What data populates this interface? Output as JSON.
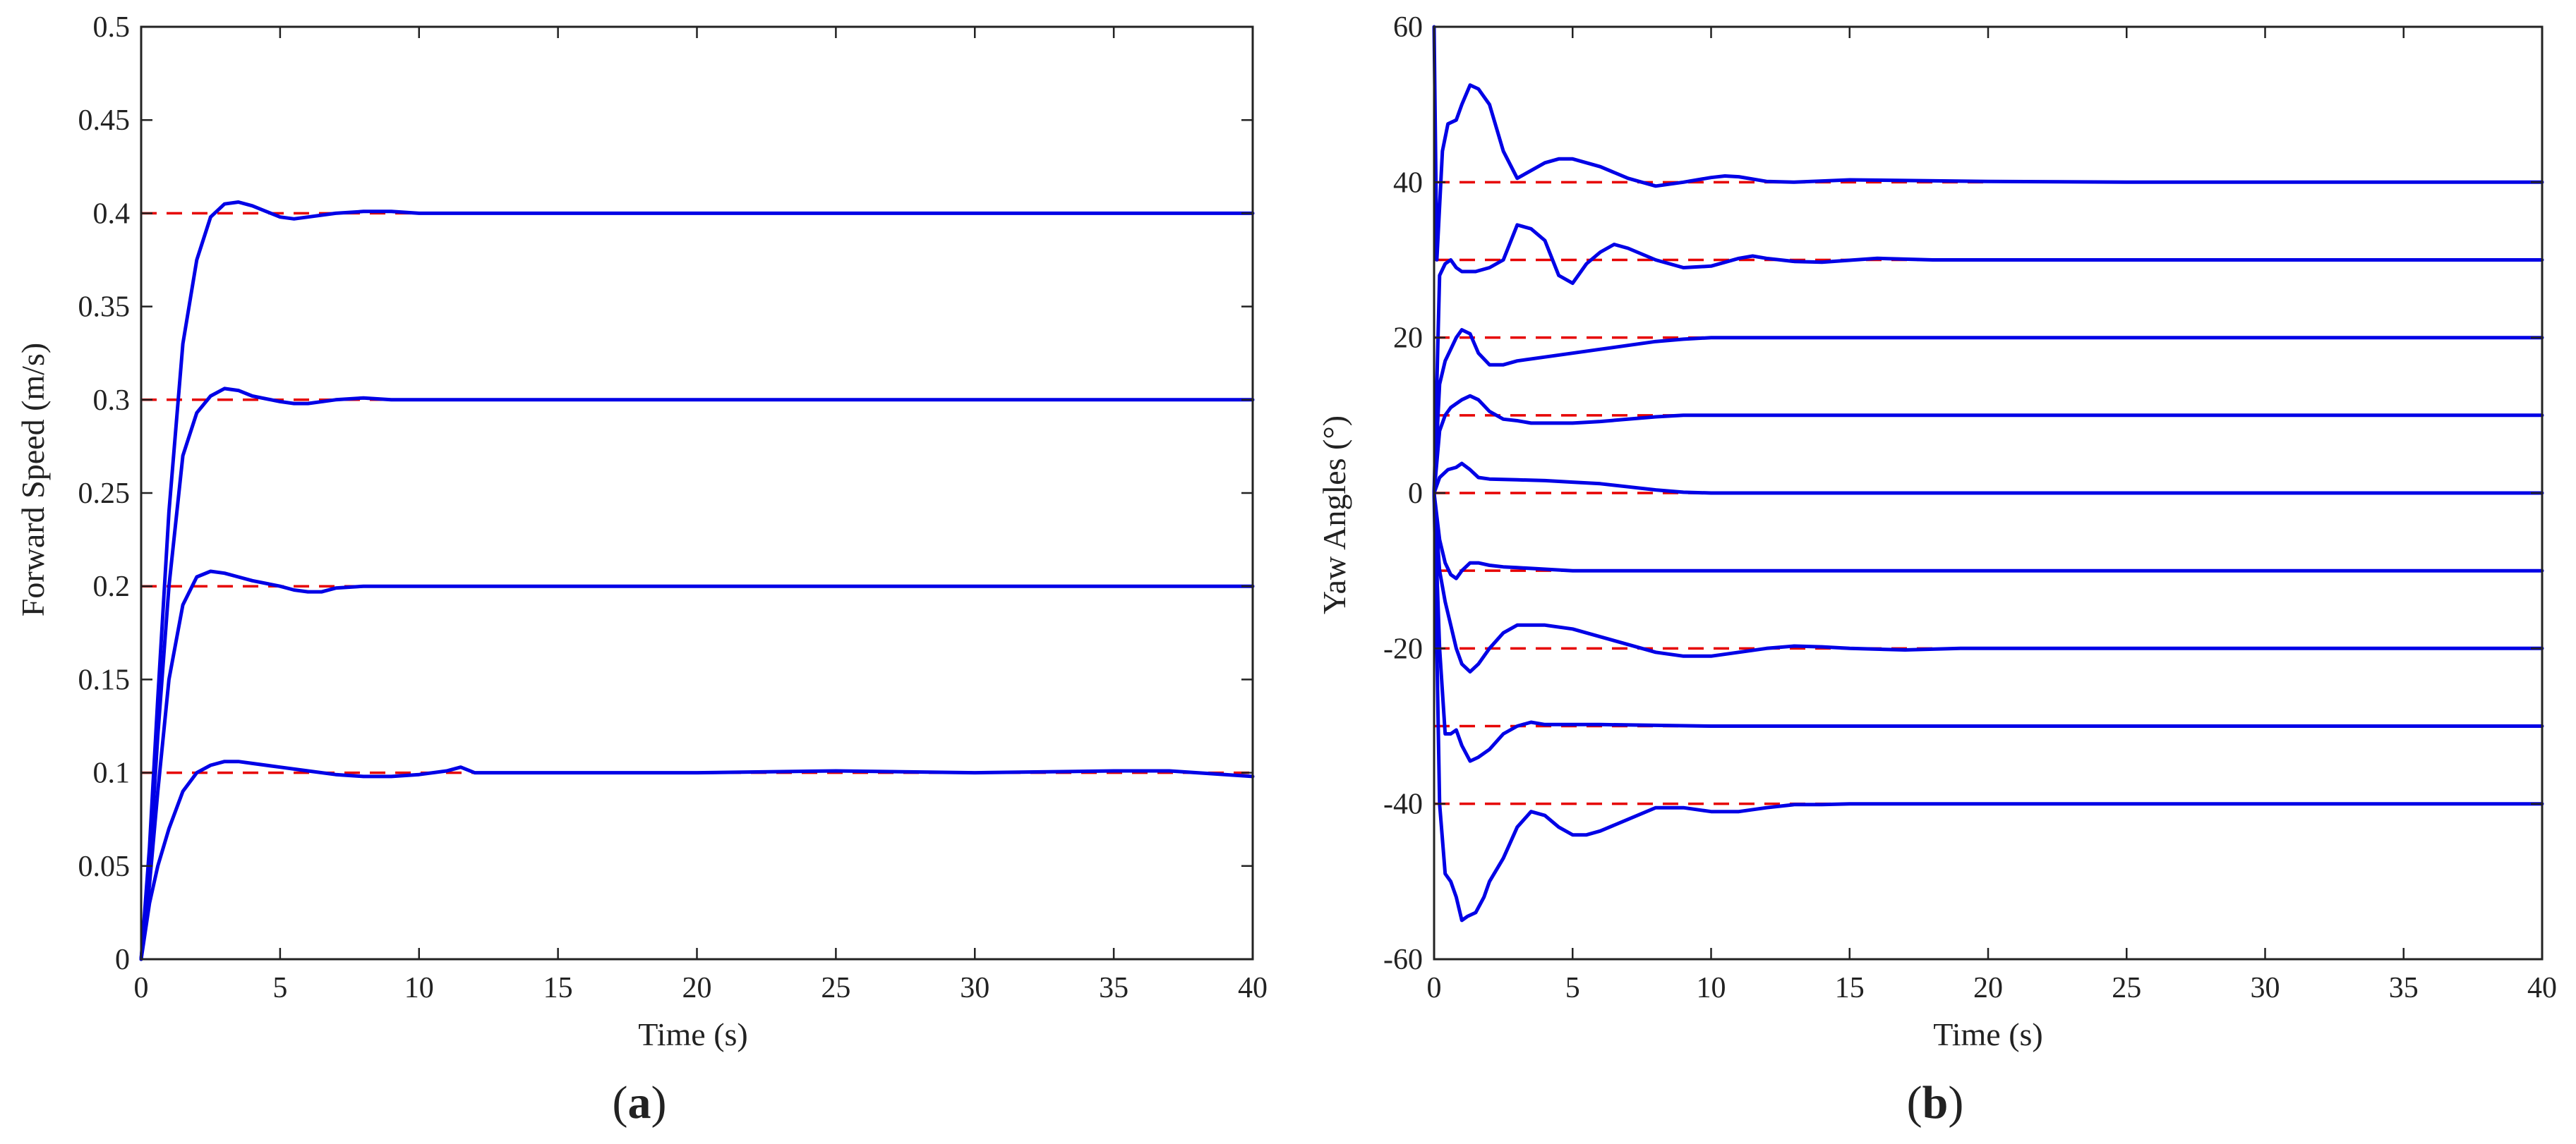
{
  "figure": {
    "panel_a_label": {
      "open": "(",
      "letter": "a",
      "close": ")"
    },
    "panel_b_label": {
      "open": "(",
      "letter": "b",
      "close": ")"
    }
  },
  "colors": {
    "response_line": "#0000e6",
    "reference_line": "#e60000",
    "axes": "#222222",
    "background": "#ffffff"
  },
  "chart_data": [
    {
      "type": "line",
      "id": "panel-a",
      "title": "",
      "xlabel": "Time (s)",
      "ylabel": "Forward Speed (m/s)",
      "xlim": [
        0,
        40
      ],
      "ylim": [
        0,
        0.5
      ],
      "xticks": [
        0,
        5,
        10,
        15,
        20,
        25,
        30,
        35,
        40
      ],
      "yticks": [
        0,
        0.05,
        0.1,
        0.15,
        0.2,
        0.25,
        0.3,
        0.35,
        0.4,
        0.45,
        0.5
      ],
      "ytick_labels": [
        "0",
        "0.05",
        "0.1",
        "0.15",
        "0.2",
        "0.25",
        "0.3",
        "0.35",
        "0.4",
        "0.45",
        "0.5"
      ],
      "grid": false,
      "references": [
        {
          "name": "reference 0.4",
          "y": 0.4,
          "x_end": 40
        },
        {
          "name": "reference 0.3",
          "y": 0.3,
          "x_end": 40
        },
        {
          "name": "reference 0.2",
          "y": 0.2,
          "x_end": 40
        },
        {
          "name": "reference 0.1",
          "y": 0.1,
          "x_end": 40
        }
      ],
      "series": [
        {
          "name": "speed 0.4",
          "x": [
            0,
            0.3,
            0.6,
            1.0,
            1.5,
            2.0,
            2.5,
            3.0,
            3.5,
            4.0,
            4.5,
            5.0,
            5.5,
            6.0,
            7.0,
            8.0,
            9.0,
            10.0,
            15.0,
            20.0,
            30.0,
            40.0
          ],
          "y": [
            0,
            0.06,
            0.14,
            0.24,
            0.33,
            0.375,
            0.398,
            0.405,
            0.406,
            0.404,
            0.401,
            0.398,
            0.397,
            0.398,
            0.4,
            0.401,
            0.401,
            0.4,
            0.4,
            0.4,
            0.4,
            0.4
          ]
        },
        {
          "name": "speed 0.3",
          "x": [
            0,
            0.3,
            0.6,
            1.0,
            1.5,
            2.0,
            2.5,
            3.0,
            3.5,
            4.0,
            5.0,
            5.5,
            6.0,
            7.0,
            8.0,
            9.0,
            10.0,
            15.0,
            20.0,
            30.0,
            40.0
          ],
          "y": [
            0,
            0.05,
            0.12,
            0.2,
            0.27,
            0.293,
            0.302,
            0.306,
            0.305,
            0.302,
            0.299,
            0.298,
            0.298,
            0.3,
            0.301,
            0.3,
            0.3,
            0.3,
            0.3,
            0.3,
            0.3
          ]
        },
        {
          "name": "speed 0.2",
          "x": [
            0,
            0.3,
            0.6,
            1.0,
            1.5,
            2.0,
            2.5,
            3.0,
            3.5,
            4.0,
            5.0,
            5.5,
            6.0,
            6.5,
            7.0,
            8.0,
            9.0,
            10.0,
            15.0,
            20.0,
            30.0,
            40.0
          ],
          "y": [
            0,
            0.04,
            0.09,
            0.15,
            0.19,
            0.205,
            0.208,
            0.207,
            0.205,
            0.203,
            0.2,
            0.198,
            0.197,
            0.197,
            0.199,
            0.2,
            0.2,
            0.2,
            0.2,
            0.2,
            0.2,
            0.2
          ]
        },
        {
          "name": "speed 0.1",
          "x": [
            0,
            0.3,
            0.6,
            1.0,
            1.5,
            2.0,
            2.5,
            3.0,
            3.5,
            4.0,
            5.0,
            6.0,
            7.0,
            8.0,
            9.0,
            10.0,
            11.0,
            11.5,
            12.0,
            15.0,
            20.0,
            25.0,
            30.0,
            35.0,
            37.0,
            40.0
          ],
          "y": [
            0,
            0.03,
            0.05,
            0.07,
            0.09,
            0.1,
            0.104,
            0.106,
            0.106,
            0.105,
            0.103,
            0.101,
            0.099,
            0.098,
            0.098,
            0.099,
            0.101,
            0.103,
            0.1,
            0.1,
            0.1,
            0.101,
            0.1,
            0.101,
            0.101,
            0.098
          ]
        }
      ]
    },
    {
      "type": "line",
      "id": "panel-b",
      "title": "",
      "xlabel": "Time (s)",
      "ylabel": "Yaw Angles (°)",
      "xlim": [
        0,
        40
      ],
      "ylim": [
        -60,
        60
      ],
      "xticks": [
        0,
        5,
        10,
        15,
        20,
        25,
        30,
        35,
        40
      ],
      "yticks": [
        -60,
        -40,
        -20,
        0,
        20,
        40,
        60
      ],
      "ytick_labels": [
        "-60",
        "-40",
        "-20",
        "0",
        "20",
        "40",
        "60"
      ],
      "grid": false,
      "references": [
        {
          "name": "reference 40",
          "y": 40,
          "x_end": 20
        },
        {
          "name": "reference 30",
          "y": 30,
          "x_end": 20
        },
        {
          "name": "reference 20",
          "y": 20,
          "x_end": 20
        },
        {
          "name": "reference 10",
          "y": 10,
          "x_end": 20
        },
        {
          "name": "reference 0",
          "y": 0,
          "x_end": 20
        },
        {
          "name": "reference -10",
          "y": -10,
          "x_end": 20
        },
        {
          "name": "reference -20",
          "y": -20,
          "x_end": 20
        },
        {
          "name": "reference -30",
          "y": -30,
          "x_end": 20
        },
        {
          "name": "reference -40",
          "y": -40,
          "x_end": 20
        }
      ],
      "series": [
        {
          "name": "yaw 40",
          "x": [
            0,
            0.1,
            0.3,
            0.5,
            0.8,
            1.0,
            1.3,
            1.6,
            2.0,
            2.5,
            3.0,
            3.5,
            4.0,
            4.5,
            5.0,
            5.5,
            6.0,
            7.0,
            8.0,
            9.0,
            10.0,
            10.5,
            11.0,
            12.0,
            13.0,
            15.0,
            20.0,
            25.0,
            40.0
          ],
          "y": [
            60,
            30,
            44,
            47.5,
            48,
            50,
            52.5,
            52,
            50,
            44,
            40.5,
            41.5,
            42.5,
            43,
            43,
            42.5,
            42,
            40.5,
            39.5,
            40,
            40.6,
            40.8,
            40.7,
            40.1,
            40,
            40.3,
            40.1,
            40,
            40
          ]
        },
        {
          "name": "yaw 30",
          "x": [
            0,
            0.2,
            0.4,
            0.6,
            0.8,
            1.0,
            1.5,
            2.0,
            2.5,
            3.0,
            3.5,
            4.0,
            4.5,
            5.0,
            5.5,
            6.0,
            6.5,
            7.0,
            8.0,
            9.0,
            10.0,
            11.0,
            11.5,
            12.0,
            13.0,
            14.0,
            16.0,
            18.0,
            20.0,
            25.0,
            40.0
          ],
          "y": [
            0,
            28,
            29.5,
            30,
            29,
            28.5,
            28.5,
            29,
            30,
            34.5,
            34,
            32.5,
            28,
            27,
            29.5,
            31,
            32,
            31.5,
            30,
            29,
            29.2,
            30.2,
            30.5,
            30.2,
            29.8,
            29.7,
            30.2,
            30,
            30,
            30,
            30
          ]
        },
        {
          "name": "yaw 20",
          "x": [
            0,
            0.2,
            0.4,
            0.6,
            0.8,
            1.0,
            1.3,
            1.6,
            2.0,
            2.5,
            3.0,
            4.0,
            5.0,
            6.0,
            7.0,
            8.0,
            9.0,
            10.0,
            12.0,
            15.0,
            20.0,
            40.0
          ],
          "y": [
            0,
            14,
            17,
            18.5,
            20,
            21,
            20.5,
            18,
            16.5,
            16.5,
            17,
            17.5,
            18,
            18.5,
            19,
            19.5,
            19.8,
            20,
            20,
            20,
            20,
            20
          ]
        },
        {
          "name": "yaw 10",
          "x": [
            0,
            0.2,
            0.4,
            0.6,
            0.8,
            1.0,
            1.3,
            1.6,
            2.0,
            2.5,
            3.0,
            3.5,
            4.0,
            5.0,
            6.0,
            7.0,
            8.0,
            9.0,
            10.0,
            12.0,
            15.0,
            40.0
          ],
          "y": [
            0,
            8,
            10,
            11,
            11.5,
            12,
            12.5,
            12,
            10.5,
            9.5,
            9.3,
            9,
            9,
            9,
            9.2,
            9.5,
            9.8,
            10,
            10,
            10,
            10,
            10
          ]
        },
        {
          "name": "yaw 0",
          "x": [
            0,
            0.2,
            0.5,
            0.8,
            1.0,
            1.3,
            1.6,
            2.0,
            3.0,
            4.0,
            5.0,
            6.0,
            7.0,
            8.0,
            9.0,
            10.0,
            12.0,
            15.0,
            40.0
          ],
          "y": [
            0,
            2,
            3,
            3.3,
            3.8,
            3,
            2,
            1.8,
            1.7,
            1.6,
            1.4,
            1.2,
            0.8,
            0.4,
            0.1,
            0,
            0,
            0,
            0
          ]
        },
        {
          "name": "yaw -10",
          "x": [
            0,
            0.2,
            0.4,
            0.6,
            0.8,
            1.0,
            1.3,
            1.6,
            2.0,
            2.5,
            3.0,
            4.0,
            5.0,
            6.0,
            7.0,
            8.0,
            10.0,
            40.0
          ],
          "y": [
            0,
            -6,
            -9,
            -10.5,
            -11,
            -10,
            -9,
            -9,
            -9.3,
            -9.5,
            -9.6,
            -9.8,
            -10,
            -10,
            -10,
            -10,
            -10,
            -10
          ]
        },
        {
          "name": "yaw -20",
          "x": [
            0,
            0.2,
            0.4,
            0.6,
            0.8,
            1.0,
            1.3,
            1.6,
            2.0,
            2.5,
            3.0,
            3.5,
            4.0,
            5.0,
            6.0,
            7.0,
            8.0,
            9.0,
            10.0,
            11.0,
            12.0,
            13.0,
            14.0,
            15.0,
            17.0,
            19.0,
            20.0,
            40.0
          ],
          "y": [
            0,
            -10,
            -14,
            -17,
            -20,
            -22,
            -23,
            -22,
            -20,
            -18,
            -17,
            -17,
            -17,
            -17.5,
            -18.5,
            -19.5,
            -20.5,
            -21,
            -21,
            -20.5,
            -20,
            -19.7,
            -19.8,
            -20,
            -20.2,
            -20,
            -20,
            -20
          ]
        },
        {
          "name": "yaw -30",
          "x": [
            0,
            0.2,
            0.4,
            0.6,
            0.8,
            1.0,
            1.3,
            1.6,
            2.0,
            2.5,
            3.0,
            3.5,
            4.0,
            5.0,
            6.0,
            8.0,
            10.0,
            15.0,
            40.0
          ],
          "y": [
            0,
            -20,
            -31,
            -31,
            -30.5,
            -32.5,
            -34.5,
            -34,
            -33,
            -31,
            -30,
            -29.5,
            -29.8,
            -29.8,
            -29.8,
            -29.9,
            -30,
            -30,
            -30
          ]
        },
        {
          "name": "yaw -40",
          "x": [
            0,
            0.2,
            0.4,
            0.6,
            0.8,
            1.0,
            1.2,
            1.5,
            1.8,
            2.0,
            2.5,
            3.0,
            3.5,
            4.0,
            4.5,
            5.0,
            5.5,
            6.0,
            7.0,
            8.0,
            9.0,
            10.0,
            11.0,
            12.0,
            13.0,
            14.0,
            15.0,
            18.0,
            20.0,
            40.0
          ],
          "y": [
            0,
            -40,
            -49,
            -50,
            -52,
            -55,
            -54.5,
            -54,
            -52,
            -50,
            -47,
            -43,
            -41,
            -41.5,
            -43,
            -44,
            -44,
            -43.5,
            -42,
            -40.5,
            -40.5,
            -41,
            -41,
            -40.5,
            -40.1,
            -40.1,
            -40,
            -40,
            -40,
            -40
          ]
        }
      ]
    }
  ]
}
